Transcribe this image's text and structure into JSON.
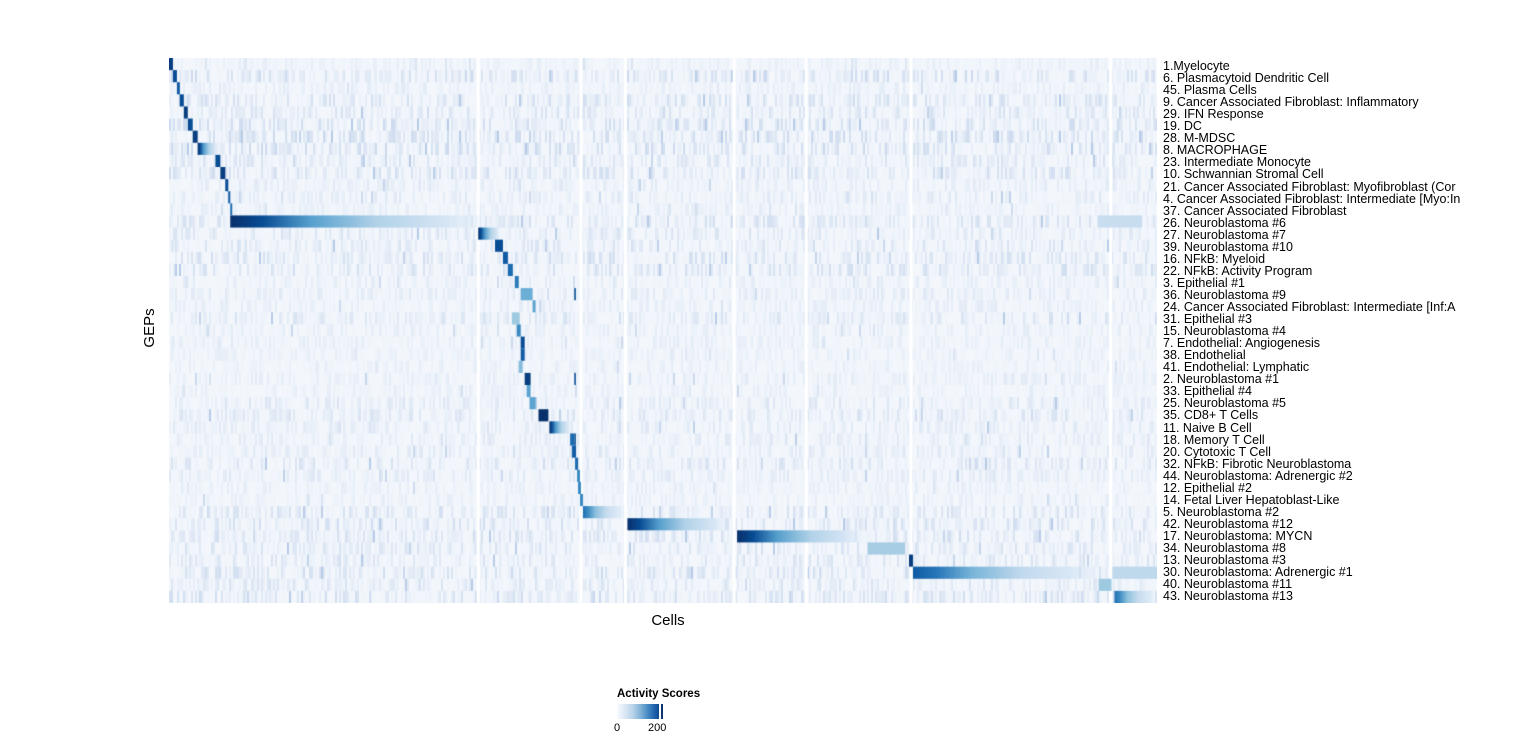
{
  "chart_data": {
    "type": "heatmap",
    "title": "",
    "xlabel": "Cells",
    "ylabel": "GEPs",
    "colorbar": {
      "title": "Activity Scores",
      "tick_labels": [
        "0",
        "200"
      ],
      "tick_values": [
        0,
        200
      ],
      "range": [
        0,
        220
      ],
      "palette": [
        "#f7fbff",
        "#c6dbef",
        "#6baed6",
        "#2171b5",
        "#08306b"
      ]
    },
    "layout": {
      "panel_bg": "#f3f7fc",
      "gap_color": "#ffffff",
      "legend_position": "bottom",
      "row_labels_side": "right"
    },
    "column_gaps": [
      0.313,
      0.417,
      0.462,
      0.572,
      0.645,
      0.751,
      0.953
    ],
    "rows": [
      {
        "label": "1.Myelocyte",
        "block": [
          0.0,
          0.004
        ],
        "peak": 0.95,
        "fade": false,
        "noise": 0.1
      },
      {
        "label": "6. Plasmacytoid Dendritic Cell",
        "block": [
          0.004,
          0.008
        ],
        "peak": 0.9,
        "fade": false,
        "noise": 0.3
      },
      {
        "label": "45. Plasma Cells",
        "block": [
          0.008,
          0.011
        ],
        "peak": 0.85,
        "fade": false,
        "noise": 0.12
      },
      {
        "label": "9. Cancer Associated Fibroblast: Inflammatory",
        "block": [
          0.011,
          0.015
        ],
        "peak": 0.9,
        "fade": false,
        "noise": 0.25
      },
      {
        "label": "29. IFN Response",
        "block": [
          0.015,
          0.019
        ],
        "peak": 0.95,
        "fade": false,
        "noise": 0.22
      },
      {
        "label": "19. DC",
        "block": [
          0.019,
          0.024
        ],
        "peak": 0.9,
        "fade": false,
        "noise": 0.28
      },
      {
        "label": "28. M-MDSC",
        "block": [
          0.024,
          0.029
        ],
        "peak": 0.95,
        "fade": false,
        "noise": 0.3
      },
      {
        "label": "8. MACROPHAGE",
        "block": [
          0.029,
          0.05
        ],
        "peak": 1.0,
        "fade": true,
        "noise": 0.3
      },
      {
        "label": "23. Intermediate Monocyte",
        "block": [
          0.047,
          0.052
        ],
        "peak": 0.9,
        "fade": false,
        "noise": 0.2
      },
      {
        "label": "10. Schwannian Stromal Cell",
        "block": [
          0.052,
          0.057
        ],
        "peak": 0.95,
        "fade": false,
        "noise": 0.25
      },
      {
        "label": "21. Cancer Associated Fibroblast: Myofibroblast (Cor",
        "block": [
          0.057,
          0.06
        ],
        "peak": 0.9,
        "fade": false,
        "noise": 0.15
      },
      {
        "label": "4. Cancer Associated Fibroblast: Intermediate [Myo:In",
        "block": [
          0.06,
          0.062
        ],
        "peak": 0.85,
        "fade": false,
        "noise": 0.15
      },
      {
        "label": "37. Cancer Associated Fibroblast",
        "block": [
          0.062,
          0.064
        ],
        "peak": 0.8,
        "fade": false,
        "noise": 0.12
      },
      {
        "label": "26. Neuroblastoma #6",
        "block": [
          0.062,
          0.33
        ],
        "peak": 1.0,
        "fade": true,
        "noise": 0.25,
        "blocks2": [
          [
            0.94,
            0.985,
            0.28
          ]
        ]
      },
      {
        "label": "27. Neuroblastoma #7",
        "block": [
          0.313,
          0.336
        ],
        "peak": 1.0,
        "fade": true,
        "noise": 0.2
      },
      {
        "label": "39. Neuroblastoma #10",
        "block": [
          0.33,
          0.338
        ],
        "peak": 0.9,
        "fade": false,
        "noise": 0.2
      },
      {
        "label": "16. NFkB: Myeloid",
        "block": [
          0.338,
          0.343
        ],
        "peak": 0.85,
        "fade": false,
        "noise": 0.25
      },
      {
        "label": "22. NFkB: Activity Program",
        "block": [
          0.343,
          0.348
        ],
        "peak": 0.8,
        "fade": false,
        "noise": 0.25
      },
      {
        "label": "3. Epithelial #1",
        "block": [
          0.35,
          0.354
        ],
        "peak": 0.75,
        "fade": false,
        "noise": 0.12
      },
      {
        "label": "36. Neuroblastoma #9",
        "block": [
          0.356,
          0.368
        ],
        "peak": 0.55,
        "fade": false,
        "noise": 0.15,
        "ticks": [
          0.411
        ]
      },
      {
        "label": "24. Cancer Associated Fibroblast: Intermediate [Inf:A",
        "block": [
          0.368,
          0.371
        ],
        "peak": 0.6,
        "fade": false,
        "noise": 0.12
      },
      {
        "label": "31. Epithelial #3",
        "block": [
          0.347,
          0.355
        ],
        "peak": 0.45,
        "fade": false,
        "noise": 0.2
      },
      {
        "label": "15. Neuroblastoma #4",
        "block": [
          0.352,
          0.356
        ],
        "peak": 0.7,
        "fade": false,
        "noise": 0.12
      },
      {
        "label": "7. Endothelial: Angiogenesis",
        "block": [
          0.356,
          0.36
        ],
        "peak": 0.9,
        "fade": false,
        "noise": 0.12
      },
      {
        "label": "38. Endothelial",
        "block": [
          0.356,
          0.36
        ],
        "peak": 0.85,
        "fade": false,
        "noise": 0.1
      },
      {
        "label": "41. Endothelial: Lymphatic",
        "block": [
          0.354,
          0.358
        ],
        "peak": 0.5,
        "fade": false,
        "noise": 0.1
      },
      {
        "label": "2. Neuroblastoma #1",
        "block": [
          0.36,
          0.366
        ],
        "peak": 0.95,
        "fade": false,
        "noise": 0.12,
        "ticks": [
          0.411
        ]
      },
      {
        "label": "33. Epithelial #4",
        "block": [
          0.362,
          0.366
        ],
        "peak": 0.6,
        "fade": false,
        "noise": 0.1
      },
      {
        "label": "25. Neuroblastoma #5",
        "block": [
          0.365,
          0.371
        ],
        "peak": 0.6,
        "fade": false,
        "noise": 0.18
      },
      {
        "label": "35. CD8+ T Cells",
        "block": [
          0.374,
          0.384
        ],
        "peak": 1.0,
        "fade": false,
        "noise": 0.2
      },
      {
        "label": "11. Naive B Cell",
        "block": [
          0.385,
          0.407
        ],
        "peak": 1.0,
        "fade": true,
        "noise": 0.15
      },
      {
        "label": "18. Memory T Cell",
        "block": [
          0.406,
          0.41
        ],
        "peak": 0.8,
        "fade": false,
        "noise": 0.15,
        "ticks": [
          0.411
        ]
      },
      {
        "label": "20. Cytotoxic T Cell",
        "block": [
          0.408,
          0.412
        ],
        "peak": 0.85,
        "fade": false,
        "noise": 0.15
      },
      {
        "label": "32. NFkB: Fibrotic Neuroblastoma",
        "block": [
          0.411,
          0.414
        ],
        "peak": 0.8,
        "fade": false,
        "noise": 0.2
      },
      {
        "label": "44. Neuroblastoma: Adrenergic #2",
        "block": [
          0.413,
          0.416
        ],
        "peak": 0.7,
        "fade": false,
        "noise": 0.15
      },
      {
        "label": "12. Epithelial #2",
        "block": [
          0.414,
          0.417
        ],
        "peak": 0.7,
        "fade": false,
        "noise": 0.1
      },
      {
        "label": "14. Fetal Liver Hepatoblast-Like",
        "block": [
          0.416,
          0.419
        ],
        "peak": 0.7,
        "fade": false,
        "noise": 0.1
      },
      {
        "label": "5. Neuroblastoma #2",
        "block": [
          0.419,
          0.462
        ],
        "peak": 0.78,
        "fade": true,
        "noise": 0.22
      },
      {
        "label": "42. Neuroblastoma #12",
        "block": [
          0.464,
          0.57
        ],
        "peak": 1.0,
        "fade": true,
        "noise": 0.25
      },
      {
        "label": "17. Neuroblastoma: MYCN",
        "block": [
          0.575,
          0.71
        ],
        "peak": 1.0,
        "fade": true,
        "noise": 0.25
      },
      {
        "label": "34. Neuroblastoma #8",
        "block": [
          0.707,
          0.745
        ],
        "peak": 0.42,
        "fade": false,
        "noise": 0.2
      },
      {
        "label": "13. Neuroblastoma #3",
        "block": [
          0.749,
          0.753
        ],
        "peak": 0.95,
        "fade": false,
        "noise": 0.2
      },
      {
        "label": "30. Neuroblastoma: Adrenergic #1",
        "block": [
          0.753,
          0.95
        ],
        "peak": 0.85,
        "fade": true,
        "noise": 0.25,
        "blocks2": [
          [
            0.955,
            1.0,
            0.33
          ]
        ]
      },
      {
        "label": "40. Neuroblastoma #11",
        "block": [
          0.941,
          0.954
        ],
        "peak": 0.45,
        "fade": false,
        "noise": 0.2
      },
      {
        "label": "43. Neuroblastoma #13",
        "block": [
          0.957,
          1.0
        ],
        "peak": 0.78,
        "fade": true,
        "noise": 0.25
      }
    ]
  }
}
